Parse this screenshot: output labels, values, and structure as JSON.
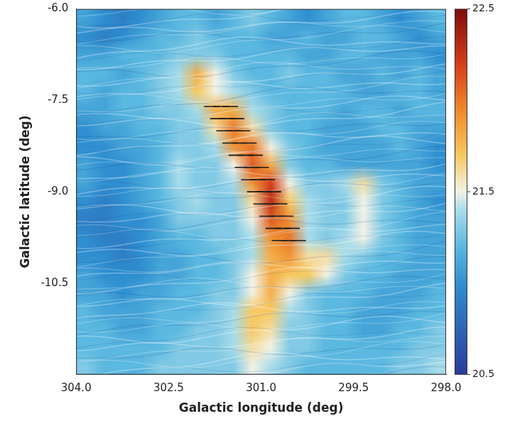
{
  "chart_data": {
    "type": "heatmap",
    "xlabel": "Galactic longitude (deg)",
    "ylabel": "Galactic latitude (deg)",
    "xlim": [
      304,
      298
    ],
    "ylim": [
      -12,
      -6
    ],
    "xticks": [
      {
        "value": 304,
        "label": "304.0"
      },
      302.5,
      {
        "value": 301,
        "label": "301.0"
      },
      299.5,
      {
        "value": 298,
        "label": "298.0"
      }
    ],
    "yticks": [
      {
        "value": -6,
        "label": "-6.0"
      },
      -7.5,
      {
        "value": -9,
        "label": "-9.0"
      },
      -10.5
    ],
    "grid": false,
    "x": [
      303.85,
      303.55,
      303.25,
      302.95,
      302.65,
      302.35,
      302.05,
      301.75,
      301.45,
      301.15,
      300.85,
      300.55,
      300.25,
      299.95,
      299.65,
      299.35,
      299.05,
      298.75,
      298.45,
      298.15
    ],
    "y": [
      -6.15,
      -6.45,
      -6.75,
      -7.05,
      -7.35,
      -7.65,
      -7.95,
      -8.25,
      -8.55,
      -8.85,
      -9.15,
      -9.45,
      -9.75,
      -10.05,
      -10.35,
      -10.65,
      -10.95,
      -11.25,
      -11.55,
      -11.85
    ],
    "cells": [
      [
        21.1,
        21.0,
        20.9,
        21.0,
        21.1,
        21.2,
        21.2,
        21.1,
        21.2,
        21.3,
        21.2,
        21.1,
        21.0,
        21.1,
        21.2,
        21.2,
        21.1,
        21.0,
        21.1,
        21.2
      ],
      [
        21.0,
        20.9,
        21.0,
        21.1,
        21.2,
        21.2,
        21.3,
        21.2,
        21.2,
        21.2,
        21.1,
        21.1,
        21.2,
        21.1,
        21.1,
        21.2,
        21.2,
        21.1,
        21.0,
        21.1
      ],
      [
        21.1,
        21.1,
        21.2,
        21.2,
        21.2,
        21.3,
        21.3,
        21.3,
        21.2,
        21.2,
        21.2,
        21.2,
        21.1,
        21.1,
        21.2,
        21.2,
        21.1,
        21.1,
        21.1,
        21.0
      ],
      [
        21.2,
        21.2,
        21.1,
        21.2,
        21.3,
        21.4,
        21.8,
        21.5,
        21.3,
        21.2,
        21.2,
        21.3,
        21.2,
        21.2,
        21.1,
        21.1,
        21.2,
        21.1,
        21.2,
        21.1
      ],
      [
        21.2,
        21.1,
        21.2,
        21.2,
        21.3,
        21.4,
        21.7,
        21.5,
        21.4,
        21.3,
        21.2,
        21.2,
        21.2,
        21.2,
        21.2,
        21.1,
        21.1,
        21.2,
        21.2,
        21.1
      ],
      [
        21.1,
        21.1,
        21.2,
        21.2,
        21.3,
        21.3,
        21.4,
        21.8,
        21.8,
        21.4,
        21.3,
        21.2,
        21.2,
        21.2,
        21.1,
        21.2,
        21.2,
        21.1,
        21.2,
        21.2
      ],
      [
        21.0,
        21.1,
        21.1,
        21.2,
        21.2,
        21.3,
        21.3,
        21.6,
        22.0,
        21.6,
        21.3,
        21.2,
        21.2,
        21.1,
        21.1,
        21.1,
        21.2,
        21.2,
        21.1,
        21.1
      ],
      [
        21.0,
        21.0,
        21.1,
        21.1,
        21.2,
        21.3,
        21.3,
        21.4,
        21.9,
        22.0,
        21.5,
        21.3,
        21.2,
        21.1,
        21.1,
        21.1,
        21.1,
        21.2,
        21.1,
        21.0
      ],
      [
        21.1,
        21.0,
        21.0,
        21.1,
        21.2,
        21.4,
        21.3,
        21.3,
        21.5,
        22.1,
        21.8,
        21.3,
        21.2,
        21.2,
        21.1,
        21.1,
        21.1,
        21.1,
        21.1,
        21.0
      ],
      [
        21.1,
        21.0,
        21.0,
        21.1,
        21.2,
        21.4,
        21.3,
        21.3,
        21.4,
        21.9,
        22.2,
        21.5,
        21.3,
        21.3,
        21.4,
        21.6,
        21.3,
        21.2,
        21.1,
        21.1
      ],
      [
        21.0,
        20.9,
        21.0,
        21.1,
        21.2,
        21.3,
        21.4,
        21.3,
        21.3,
        21.6,
        22.3,
        21.7,
        21.4,
        21.3,
        21.3,
        21.5,
        21.3,
        21.2,
        21.1,
        21.0
      ],
      [
        20.9,
        20.9,
        21.0,
        21.0,
        21.1,
        21.3,
        21.3,
        21.3,
        21.3,
        21.5,
        22.1,
        21.9,
        21.4,
        21.3,
        21.3,
        21.5,
        21.3,
        21.2,
        21.1,
        21.1
      ],
      [
        21.0,
        20.9,
        20.9,
        21.0,
        21.1,
        21.2,
        21.2,
        21.3,
        21.3,
        21.4,
        21.9,
        22.0,
        21.4,
        21.3,
        21.4,
        21.5,
        21.3,
        21.2,
        21.1,
        21.1
      ],
      [
        21.0,
        21.0,
        20.9,
        21.0,
        21.1,
        21.1,
        21.2,
        21.2,
        21.3,
        21.4,
        21.8,
        21.9,
        21.6,
        21.6,
        21.4,
        21.3,
        21.2,
        21.2,
        21.1,
        21.1
      ],
      [
        21.1,
        21.0,
        21.0,
        21.0,
        21.1,
        21.1,
        21.2,
        21.2,
        21.3,
        21.5,
        21.8,
        21.7,
        21.7,
        21.5,
        21.3,
        21.2,
        21.2,
        21.1,
        21.1,
        21.1
      ],
      [
        21.1,
        21.1,
        21.0,
        21.1,
        21.1,
        21.2,
        21.2,
        21.3,
        21.3,
        21.5,
        21.8,
        21.5,
        21.3,
        21.2,
        21.2,
        21.2,
        21.1,
        21.1,
        21.1,
        21.2
      ],
      [
        21.2,
        21.1,
        21.1,
        21.1,
        21.2,
        21.2,
        21.2,
        21.3,
        21.4,
        21.7,
        21.7,
        21.4,
        21.3,
        21.2,
        21.2,
        21.1,
        21.1,
        21.1,
        21.2,
        21.2
      ],
      [
        21.2,
        21.2,
        21.1,
        21.1,
        21.2,
        21.2,
        21.3,
        21.3,
        21.4,
        21.7,
        21.6,
        21.3,
        21.3,
        21.2,
        21.2,
        21.1,
        21.1,
        21.2,
        21.2,
        21.3
      ],
      [
        21.2,
        21.2,
        21.2,
        21.2,
        21.2,
        21.3,
        21.3,
        21.3,
        21.4,
        21.6,
        21.5,
        21.3,
        21.3,
        21.2,
        21.2,
        21.2,
        21.2,
        21.2,
        21.3,
        21.3
      ],
      [
        21.3,
        21.2,
        21.2,
        21.2,
        21.3,
        21.3,
        21.3,
        21.3,
        21.3,
        21.5,
        21.4,
        21.3,
        21.2,
        21.2,
        21.2,
        21.2,
        21.2,
        21.3,
        21.3,
        21.4
      ]
    ],
    "colorbar": {
      "range": [
        20.5,
        22.5
      ],
      "ticks": [
        20.5,
        21.5,
        22.5
      ]
    },
    "vectors": {
      "marker": "line",
      "color": "#1a1a1a",
      "x": [
        301.8,
        301.65,
        301.5,
        301.7,
        301.55,
        301.4,
        301.6,
        301.45,
        301.3,
        301.5,
        301.35,
        301.2,
        301.4,
        301.25,
        301.1,
        301.3,
        301.15,
        301.0,
        301.2,
        301.05,
        300.9,
        301.1,
        300.95,
        300.8,
        301.0,
        300.85,
        300.7,
        300.9,
        300.75,
        300.6,
        300.8,
        300.65,
        300.5,
        300.7,
        300.55,
        300.4
      ],
      "y": [
        -7.6,
        -7.6,
        -7.6,
        -7.8,
        -7.8,
        -7.8,
        -8.0,
        -8.0,
        -8.0,
        -8.2,
        -8.2,
        -8.2,
        -8.4,
        -8.4,
        -8.4,
        -8.6,
        -8.6,
        -8.6,
        -8.8,
        -8.8,
        -8.8,
        -9.0,
        -9.0,
        -9.0,
        -9.2,
        -9.2,
        -9.2,
        -9.4,
        -9.4,
        -9.4,
        -9.6,
        -9.6,
        -9.6,
        -9.8,
        -9.8,
        -9.8
      ]
    }
  }
}
